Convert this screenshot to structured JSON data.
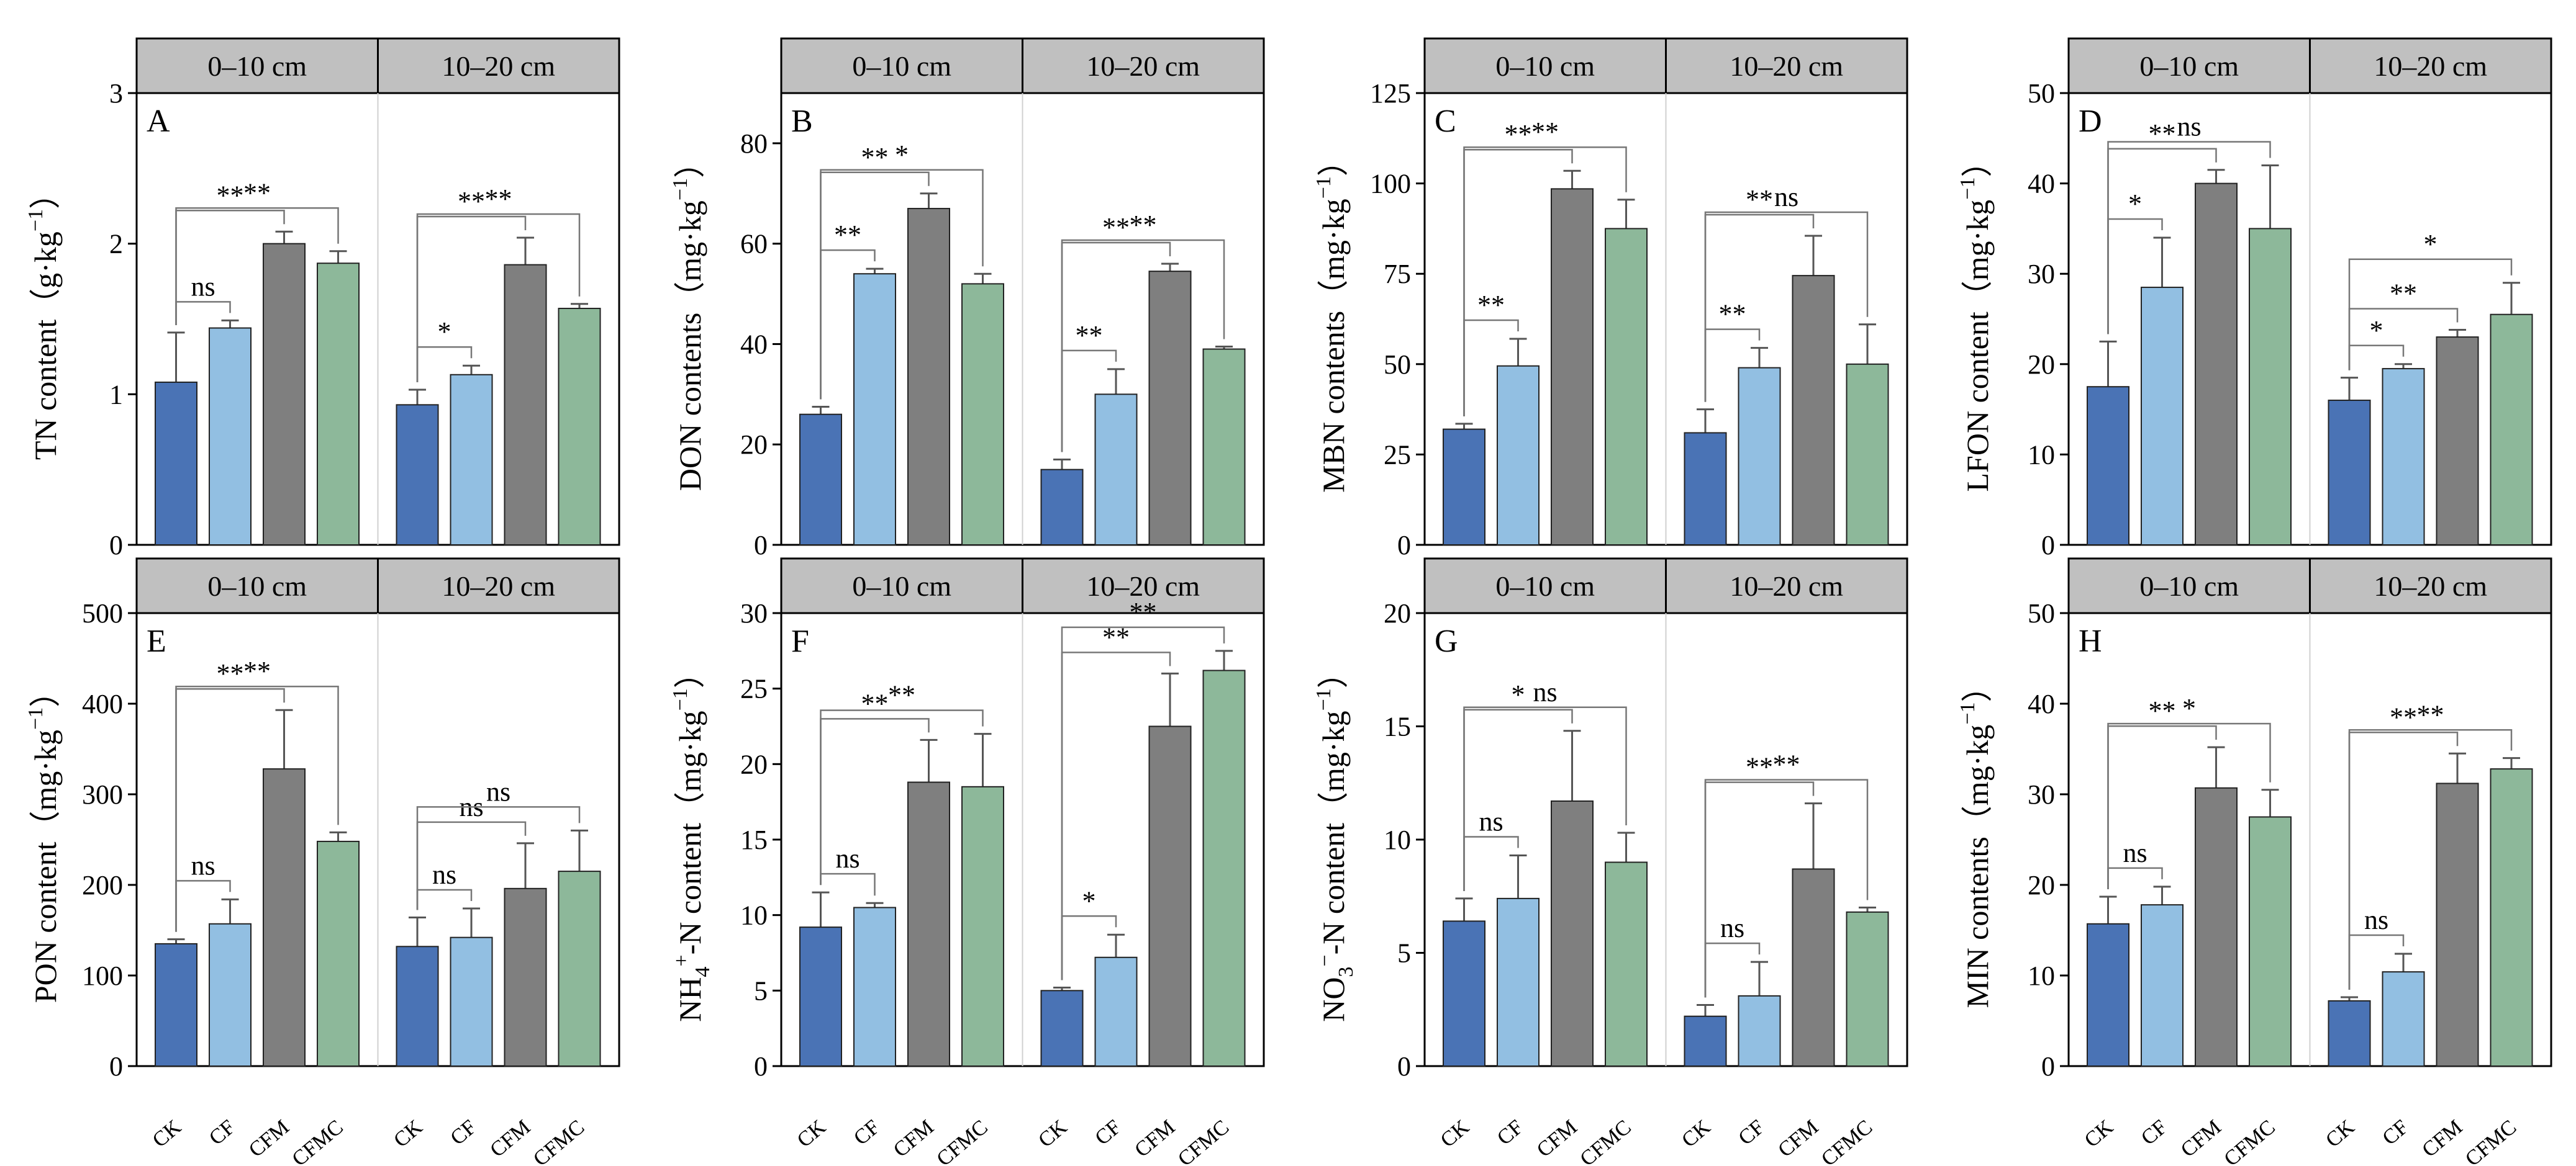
{
  "figure": {
    "strip_labels": [
      "0–10 cm",
      "10–20 cm"
    ],
    "bar_colors": {
      "CK": "#4a73b5",
      "CF": "#92bfe2",
      "CFM": "#7f7f7f",
      "CFMC": "#8db89a"
    }
  },
  "chart_data": [
    {
      "type": "bar",
      "panel": "A",
      "ylabel": "TN content（g·kg",
      "ylabel_sup": "−1",
      "ylabel_tail": "）",
      "ylim": [
        0,
        3
      ],
      "yticks": [
        0,
        1,
        2,
        3
      ],
      "categories": [
        "CK",
        "CF",
        "CFM",
        "CFMC"
      ],
      "groups": [
        {
          "name": "0–10 cm",
          "values": [
            1.08,
            1.44,
            2.0,
            1.87
          ],
          "errors": [
            0.33,
            0.05,
            0.08,
            0.08
          ]
        },
        {
          "name": "10–20 cm",
          "values": [
            0.93,
            1.13,
            1.86,
            1.57
          ],
          "errors": [
            0.1,
            0.06,
            0.18,
            0.03
          ]
        }
      ],
      "comparisons": [
        {
          "group": 0,
          "to": 1,
          "label": "ns",
          "level": 0
        },
        {
          "group": 0,
          "to": 2,
          "label": "**",
          "level": 1
        },
        {
          "group": 0,
          "to": 3,
          "label": "**",
          "level": 2
        },
        {
          "group": 1,
          "to": 1,
          "label": "*",
          "level": 0
        },
        {
          "group": 1,
          "to": 2,
          "label": "**",
          "level": 1
        },
        {
          "group": 1,
          "to": 3,
          "label": "**",
          "level": 2
        }
      ]
    },
    {
      "type": "bar",
      "panel": "B",
      "ylabel": "DON contents（mg·kg",
      "ylabel_sup": "−1",
      "ylabel_tail": "）",
      "ylim": [
        0,
        90
      ],
      "yticks": [
        0,
        20,
        40,
        60,
        80
      ],
      "categories": [
        "CK",
        "CF",
        "CFM",
        "CFMC"
      ],
      "groups": [
        {
          "name": "0–10 cm",
          "values": [
            26,
            54,
            67,
            52
          ],
          "errors": [
            1.5,
            1.0,
            3.0,
            2.0
          ]
        },
        {
          "name": "10–20 cm",
          "values": [
            15,
            30,
            54.5,
            39
          ],
          "errors": [
            2.0,
            5.0,
            1.5,
            0.5
          ]
        }
      ],
      "comparisons": [
        {
          "group": 0,
          "to": 1,
          "label": "**",
          "level": 0
        },
        {
          "group": 0,
          "to": 2,
          "label": "**",
          "level": 1
        },
        {
          "group": 0,
          "to": 3,
          "label": "*",
          "level": 2
        },
        {
          "group": 1,
          "to": 1,
          "label": "**",
          "level": 0
        },
        {
          "group": 1,
          "to": 2,
          "label": "**",
          "level": 1
        },
        {
          "group": 1,
          "to": 3,
          "label": "**",
          "level": 2
        }
      ]
    },
    {
      "type": "bar",
      "panel": "C",
      "ylabel": "MBN contents（mg·kg",
      "ylabel_sup": "−1",
      "ylabel_tail": "）",
      "ylim": [
        0,
        125
      ],
      "yticks": [
        0,
        25,
        50,
        75,
        100,
        125
      ],
      "categories": [
        "CK",
        "CF",
        "CFM",
        "CFMC"
      ],
      "groups": [
        {
          "name": "0–10 cm",
          "values": [
            32,
            49.5,
            98.5,
            87.5
          ],
          "errors": [
            1.5,
            7.5,
            5.0,
            8.0
          ]
        },
        {
          "name": "10–20 cm",
          "values": [
            31,
            49,
            74.5,
            50
          ],
          "errors": [
            6.5,
            5.5,
            11.0,
            11.0
          ]
        }
      ],
      "comparisons": [
        {
          "group": 0,
          "to": 1,
          "label": "**",
          "level": 0
        },
        {
          "group": 0,
          "to": 2,
          "label": "**",
          "level": 1
        },
        {
          "group": 0,
          "to": 3,
          "label": "**",
          "level": 2
        },
        {
          "group": 1,
          "to": 1,
          "label": "**",
          "level": 0
        },
        {
          "group": 1,
          "to": 2,
          "label": "**",
          "level": 1
        },
        {
          "group": 1,
          "to": 3,
          "label": "ns",
          "level": 2
        }
      ]
    },
    {
      "type": "bar",
      "panel": "D",
      "ylabel": "LFON content（mg·kg",
      "ylabel_sup": "−1",
      "ylabel_tail": "）",
      "ylim": [
        0,
        50
      ],
      "yticks": [
        0,
        10,
        20,
        30,
        40,
        50
      ],
      "categories": [
        "CK",
        "CF",
        "CFM",
        "CFMC"
      ],
      "groups": [
        {
          "name": "0–10 cm",
          "values": [
            17.5,
            28.5,
            40,
            35
          ],
          "errors": [
            5.0,
            5.5,
            1.5,
            7.0
          ]
        },
        {
          "name": "10–20 cm",
          "values": [
            16,
            19.5,
            23,
            25.5
          ],
          "errors": [
            2.5,
            0.5,
            0.8,
            3.5
          ]
        }
      ],
      "comparisons": [
        {
          "group": 0,
          "to": 1,
          "label": "*",
          "level": 0
        },
        {
          "group": 0,
          "to": 2,
          "label": "**",
          "level": 1
        },
        {
          "group": 0,
          "to": 3,
          "label": "ns",
          "level": 2
        },
        {
          "group": 1,
          "to": 1,
          "label": "*",
          "level": 0
        },
        {
          "group": 1,
          "to": 2,
          "label": "**",
          "level": 1
        },
        {
          "group": 1,
          "to": 3,
          "label": "*",
          "level": 2
        }
      ]
    },
    {
      "type": "bar",
      "panel": "E",
      "ylabel": "PON content（mg·kg",
      "ylabel_sup": "−1",
      "ylabel_tail": "）",
      "ylim": [
        0,
        500
      ],
      "yticks": [
        0,
        100,
        200,
        300,
        400,
        500
      ],
      "categories": [
        "CK",
        "CF",
        "CFM",
        "CFMC"
      ],
      "groups": [
        {
          "name": "0–10 cm",
          "values": [
            135,
            157,
            328,
            248
          ],
          "errors": [
            5,
            27,
            65,
            10
          ]
        },
        {
          "name": "10–20 cm",
          "values": [
            132,
            142,
            196,
            215
          ],
          "errors": [
            32,
            32,
            50,
            45
          ]
        }
      ],
      "comparisons": [
        {
          "group": 0,
          "to": 1,
          "label": "ns",
          "level": 0
        },
        {
          "group": 0,
          "to": 2,
          "label": "**",
          "level": 1
        },
        {
          "group": 0,
          "to": 3,
          "label": "**",
          "level": 2
        },
        {
          "group": 1,
          "to": 1,
          "label": "ns",
          "level": 0
        },
        {
          "group": 1,
          "to": 2,
          "label": "ns",
          "level": 1
        },
        {
          "group": 1,
          "to": 3,
          "label": "ns",
          "level": 2
        }
      ]
    },
    {
      "type": "bar",
      "panel": "F",
      "ylabel": "NH",
      "ylabel_sub": "4",
      "ylabel_sup": "+",
      "ylabel_mid": "-N content（mg·kg",
      "ylabel_sup2": "−1",
      "ylabel_tail": "）",
      "ylim": [
        0,
        30
      ],
      "yticks": [
        0,
        5,
        10,
        15,
        20,
        25,
        30
      ],
      "categories": [
        "CK",
        "CF",
        "CFM",
        "CFMC"
      ],
      "groups": [
        {
          "name": "0–10 cm",
          "values": [
            9.2,
            10.5,
            18.8,
            18.5
          ],
          "errors": [
            2.3,
            0.3,
            2.8,
            3.5
          ]
        },
        {
          "name": "10–20 cm",
          "values": [
            5.0,
            7.2,
            22.5,
            26.2
          ],
          "errors": [
            0.2,
            1.5,
            3.5,
            1.3
          ]
        }
      ],
      "comparisons": [
        {
          "group": 0,
          "to": 1,
          "label": "ns",
          "level": 0
        },
        {
          "group": 0,
          "to": 2,
          "label": "**",
          "level": 1
        },
        {
          "group": 0,
          "to": 3,
          "label": "**",
          "level": 2
        },
        {
          "group": 1,
          "to": 1,
          "label": "*",
          "level": 0
        },
        {
          "group": 1,
          "to": 2,
          "label": "**",
          "level": 1
        },
        {
          "group": 1,
          "to": 3,
          "label": "**",
          "level": 2
        }
      ]
    },
    {
      "type": "bar",
      "panel": "G",
      "ylabel": "NO",
      "ylabel_sub": "3",
      "ylabel_sup": "−",
      "ylabel_mid": "-N content（mg·kg",
      "ylabel_sup2": "−1",
      "ylabel_tail": "）",
      "ylim": [
        0,
        20
      ],
      "yticks": [
        0,
        5,
        10,
        15,
        20
      ],
      "categories": [
        "CK",
        "CF",
        "CFM",
        "CFMC"
      ],
      "groups": [
        {
          "name": "0–10 cm",
          "values": [
            6.4,
            7.4,
            11.7,
            9.0
          ],
          "errors": [
            1.0,
            1.9,
            3.1,
            1.3
          ]
        },
        {
          "name": "10–20 cm",
          "values": [
            2.2,
            3.1,
            8.7,
            6.8
          ],
          "errors": [
            0.5,
            1.5,
            2.9,
            0.2
          ]
        }
      ],
      "comparisons": [
        {
          "group": 0,
          "to": 1,
          "label": "ns",
          "level": 0
        },
        {
          "group": 0,
          "to": 2,
          "label": "*",
          "level": 1
        },
        {
          "group": 0,
          "to": 3,
          "label": "ns",
          "level": 2
        },
        {
          "group": 1,
          "to": 1,
          "label": "ns",
          "level": 0
        },
        {
          "group": 1,
          "to": 2,
          "label": "**",
          "level": 1
        },
        {
          "group": 1,
          "to": 3,
          "label": "**",
          "level": 2
        }
      ]
    },
    {
      "type": "bar",
      "panel": "H",
      "ylabel": "MIN contents（mg·kg",
      "ylabel_sup": "−1",
      "ylabel_tail": "）",
      "ylim": [
        0,
        50
      ],
      "yticks": [
        0,
        10,
        20,
        30,
        40,
        50
      ],
      "categories": [
        "CK",
        "CF",
        "CFM",
        "CFMC"
      ],
      "groups": [
        {
          "name": "0–10 cm",
          "values": [
            15.7,
            17.8,
            30.7,
            27.5
          ],
          "errors": [
            3.0,
            2.0,
            4.5,
            3.0
          ]
        },
        {
          "name": "10–20 cm",
          "values": [
            7.2,
            10.4,
            31.2,
            32.8
          ],
          "errors": [
            0.4,
            2.0,
            3.3,
            1.2
          ]
        }
      ],
      "comparisons": [
        {
          "group": 0,
          "to": 1,
          "label": "ns",
          "level": 0
        },
        {
          "group": 0,
          "to": 2,
          "label": "**",
          "level": 1
        },
        {
          "group": 0,
          "to": 3,
          "label": "*",
          "level": 2
        },
        {
          "group": 1,
          "to": 1,
          "label": "ns",
          "level": 0
        },
        {
          "group": 1,
          "to": 2,
          "label": "**",
          "level": 1
        },
        {
          "group": 1,
          "to": 3,
          "label": "**",
          "level": 2
        }
      ]
    }
  ]
}
